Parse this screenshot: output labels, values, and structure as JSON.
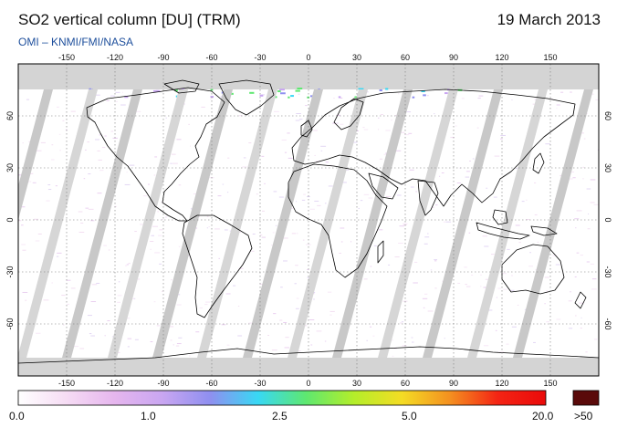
{
  "header": {
    "title": "SO2 vertical column [DU] (TRM)",
    "date": "19 March 2013",
    "provider": "OMI  –  KNMI/FMI/NASA"
  },
  "map": {
    "projection": "equirectangular",
    "lon_range": [
      -180,
      180
    ],
    "lat_range": [
      -90,
      90
    ],
    "lon_ticks": [
      "-150",
      "-120",
      "-90",
      "-60",
      "-30",
      "0",
      "30",
      "60",
      "90",
      "120",
      "150"
    ],
    "lat_ticks": [
      "60",
      "30",
      "0",
      "-30",
      "-60"
    ],
    "grid": "dotted",
    "background_color": "#ffffff",
    "no_data_color": "#d4d4d4",
    "coastline_color": "#000000"
  },
  "colorbar": {
    "labels": [
      "0.0",
      "1.0",
      "2.5",
      "5.0",
      "20.0",
      ">50"
    ],
    "stops": [
      "#ffffff",
      "#f6dcf4",
      "#e6b6ee",
      "#c9a6f1",
      "#8f8ff0",
      "#38d8f4",
      "#5ee870",
      "#b4ee2a",
      "#f4dc24",
      "#f49020",
      "#f42414",
      "#ea0a0a"
    ],
    "over_color": "#5a0a0a"
  },
  "chart_data": {
    "type": "heatmap",
    "title": "SO2 vertical column [DU] (TRM)",
    "date": "19 March 2013",
    "colorbar_scale": [
      0.0,
      1.0,
      2.5,
      5.0,
      20.0
    ],
    "overflow_label": ">50",
    "x_ticks": [
      -150,
      -120,
      -90,
      -60,
      -30,
      0,
      30,
      60,
      90,
      120,
      150
    ],
    "y_ticks": [
      60,
      30,
      0,
      -30,
      -60
    ]
  }
}
